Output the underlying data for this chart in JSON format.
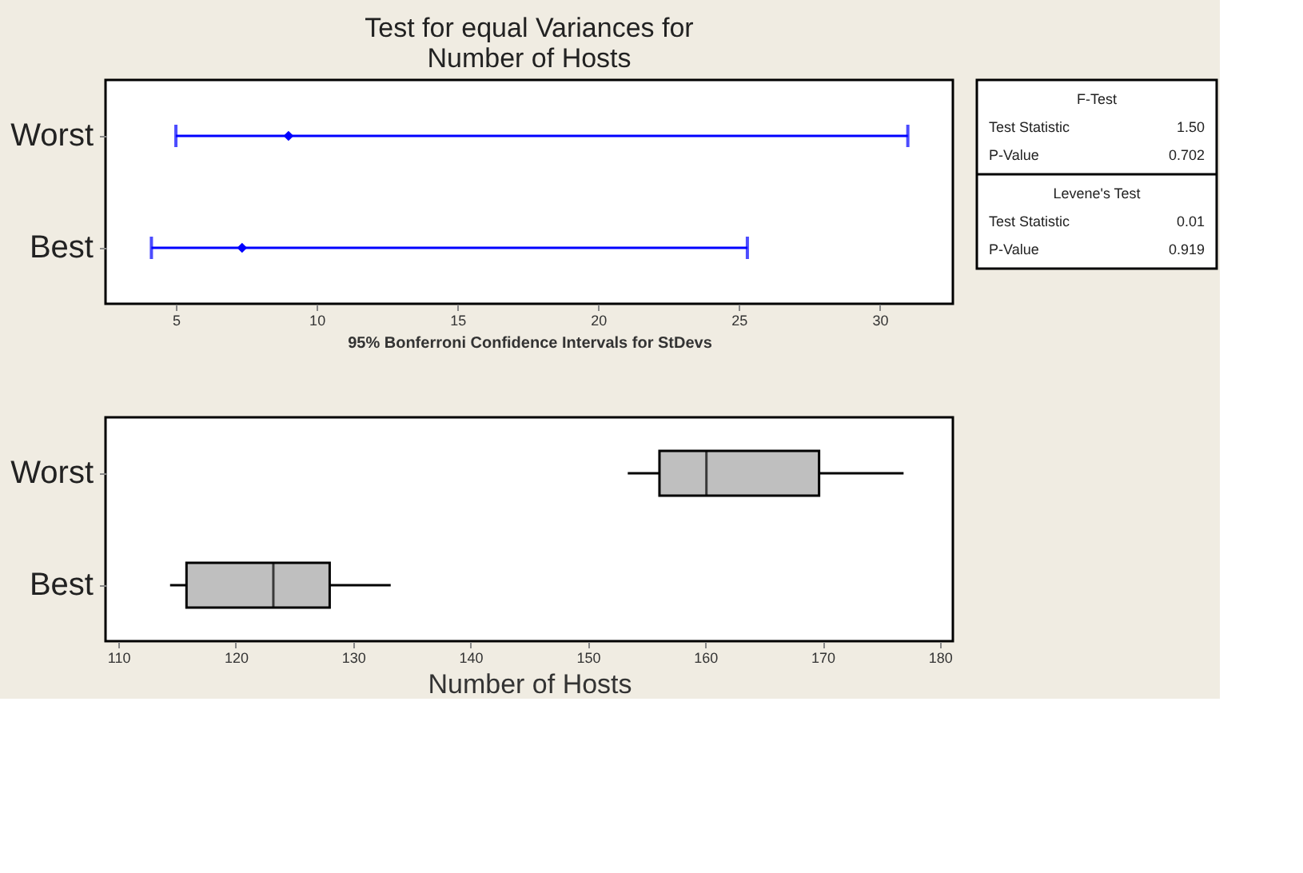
{
  "chart_data": [
    {
      "type": "scatter",
      "title": "Test for equal Variances for Number of Hosts",
      "orientation": "horizontal",
      "categories": [
        "Worst",
        "Best"
      ],
      "values": [
        9.0,
        7.35
      ],
      "errors": [
        [
          5.0,
          31.0
        ],
        [
          4.13,
          25.3
        ]
      ],
      "color": "#0000ff",
      "marker": "diamond",
      "xlim": [
        2.5,
        32.6
      ],
      "xticks": [
        5,
        10,
        15,
        20,
        25,
        30
      ],
      "xlabel": "95% Bonferroni Confidence Intervals for StDevs",
      "grid": false
    },
    {
      "type": "other",
      "annotations": [
        "F-Test",
        "Test Statistic",
        "1.50",
        "P-Value",
        "0.702",
        "Levene's Test",
        "Test Statistic",
        "0.01",
        "P-Value",
        "0.919"
      ]
    },
    {
      "type": "box",
      "orientation": "horizontal",
      "categories": [
        "Worst",
        "Best"
      ],
      "color": "#bfbfbf",
      "boxes": [
        {
          "low": 153.4,
          "q1": 156.1,
          "median": 160.1,
          "q3": 169.7,
          "high": 176.9
        },
        {
          "low": 114.4,
          "q1": 115.8,
          "median": 123.2,
          "q3": 128.0,
          "high": 133.2
        }
      ],
      "xlim": [
        108.9,
        181.1
      ],
      "xticks": [
        110,
        120,
        130,
        140,
        150,
        160,
        170,
        180
      ],
      "xlabel": "Number of Hosts",
      "grid": false
    }
  ]
}
